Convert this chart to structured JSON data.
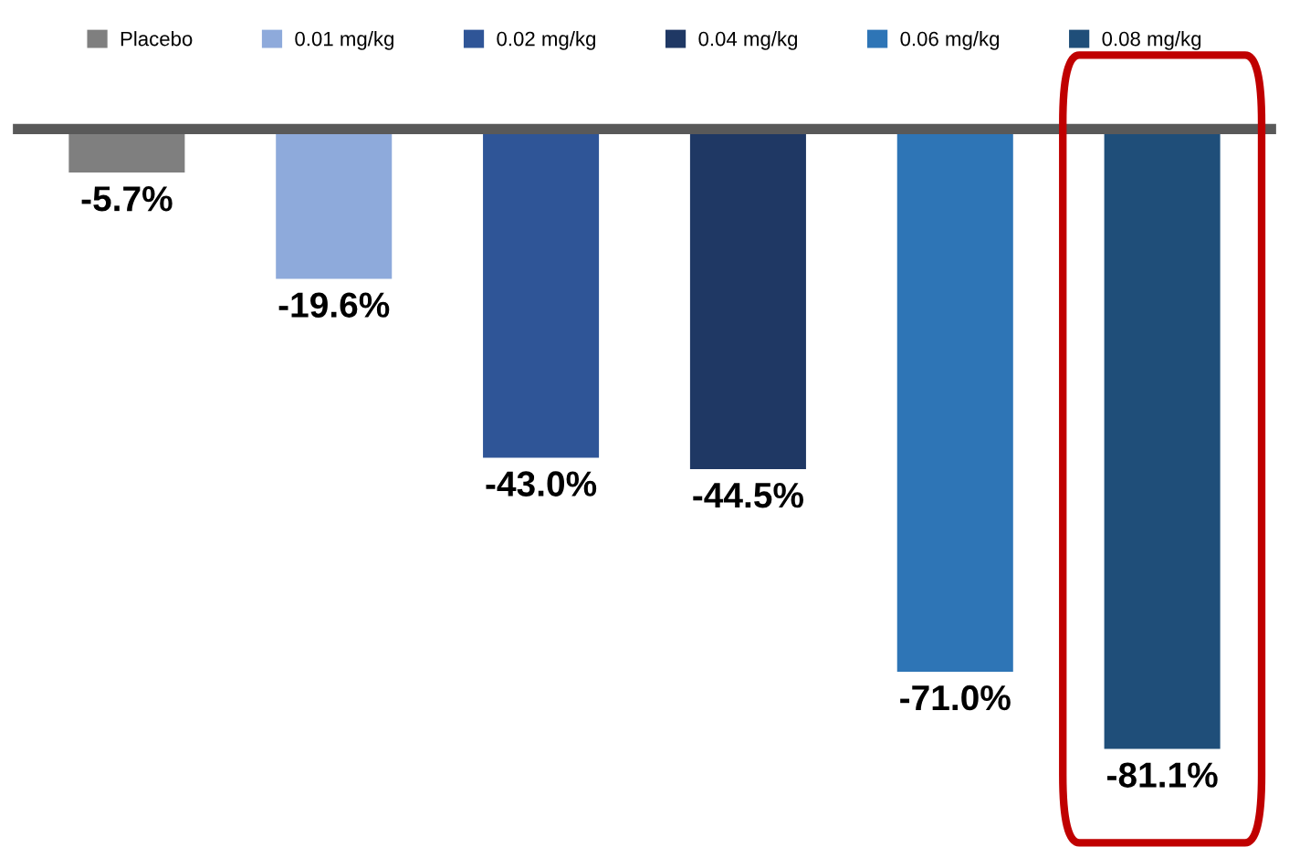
{
  "chart_data": {
    "type": "bar",
    "categories": [
      null,
      null,
      null,
      null,
      null,
      null
    ],
    "stacked": true,
    "series": [
      {
        "name": "Placebo",
        "color": "#7f7f7f",
        "values": [
          -5.7,
          null,
          null,
          null,
          null,
          null
        ],
        "value_labels": [
          "-5.7%",
          null,
          null,
          null,
          null,
          null
        ]
      },
      {
        "name": "0.01 mg/kg",
        "color": "#8eaadb",
        "values": [
          null,
          -19.6,
          null,
          null,
          null,
          null
        ],
        "value_labels": [
          null,
          "-19.6%",
          null,
          null,
          null,
          null
        ]
      },
      {
        "name": "0.02 mg/kg",
        "color": "#2f5597",
        "values": [
          null,
          null,
          -43.0,
          null,
          null,
          null
        ],
        "value_labels": [
          null,
          null,
          "-43.0%",
          null,
          null,
          null
        ]
      },
      {
        "name": "0.04 mg/kg",
        "color": "#1f3864",
        "values": [
          null,
          null,
          null,
          -44.5,
          null,
          null
        ],
        "value_labels": [
          null,
          null,
          null,
          "-44.5%",
          null,
          null
        ]
      },
      {
        "name": "0.06 mg/kg",
        "color": "#2e75b6",
        "values": [
          null,
          null,
          null,
          null,
          -71.0,
          null
        ],
        "value_labels": [
          null,
          null,
          null,
          null,
          "-71.0%",
          null
        ]
      },
      {
        "name": "0.08 mg/kg",
        "color": "#1f4e79",
        "values": [
          null,
          null,
          null,
          null,
          null,
          -81.1
        ],
        "value_labels": [
          null,
          null,
          null,
          null,
          null,
          "-81.1%"
        ]
      }
    ],
    "legend": "top"
  }
}
